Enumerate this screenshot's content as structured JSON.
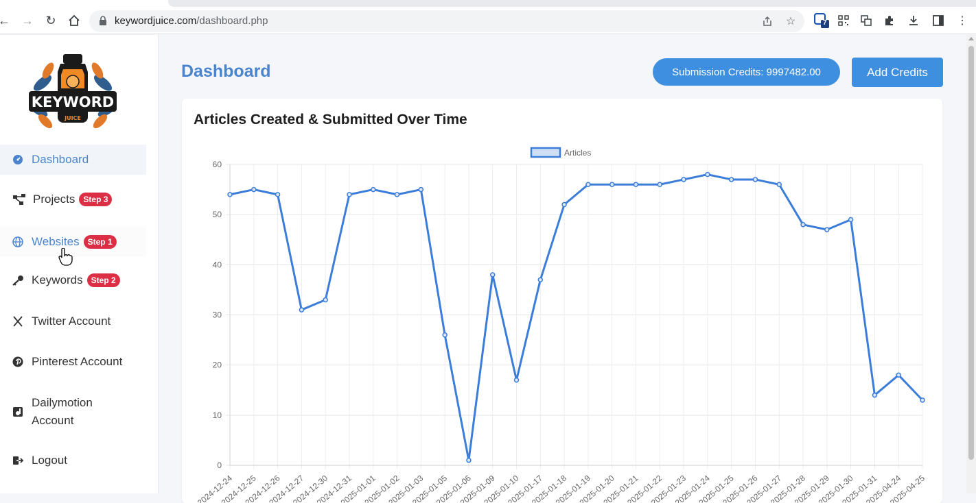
{
  "browser": {
    "url_host": "keywordjuice.com",
    "url_path": "/dashboard.php",
    "extension_badge": "7"
  },
  "sidebar": {
    "logo_text": "KEYWORD",
    "logo_subtext": "JUICE",
    "items": [
      {
        "label": "Dashboard",
        "icon": "dashboard-icon",
        "active": true
      },
      {
        "label": "Projects",
        "icon": "projects-icon",
        "badge": "Step 3"
      },
      {
        "label": "Websites",
        "icon": "globe-icon",
        "badge": "Step 1"
      },
      {
        "label": "Keywords",
        "icon": "key-icon",
        "badge": "Step 2"
      },
      {
        "label": "Twitter Account",
        "icon": "x-icon"
      },
      {
        "label": "Pinterest Account",
        "icon": "pinterest-icon"
      },
      {
        "label": "Dailymotion Account",
        "icon": "dailymotion-icon"
      },
      {
        "label": "Logout",
        "icon": "logout-icon"
      }
    ]
  },
  "header": {
    "title": "Dashboard",
    "credits_label": "Submission Credits: 9997482.00",
    "add_credits_label": "Add Credits"
  },
  "card": {
    "title": "Articles Created & Submitted Over Time"
  },
  "colors": {
    "accent": "#4a84cf",
    "button": "#3f8fe0",
    "badge": "#dc2f45",
    "line": "#3b7dd8"
  },
  "chart_data": {
    "type": "line",
    "title": "",
    "legend": [
      "Articles"
    ],
    "legend_position": "top",
    "ylim": [
      0,
      60
    ],
    "yticks": [
      0,
      10,
      20,
      30,
      40,
      50,
      60
    ],
    "grid": true,
    "categories": [
      "2024-12-24",
      "2024-12-25",
      "2024-12-26",
      "2024-12-27",
      "2024-12-30",
      "2024-12-31",
      "2025-01-01",
      "2025-01-02",
      "2025-01-03",
      "2025-01-05",
      "2025-01-06",
      "2025-01-09",
      "2025-01-10",
      "2025-01-17",
      "2025-01-18",
      "2025-01-19",
      "2025-01-20",
      "2025-01-21",
      "2025-01-22",
      "2025-01-23",
      "2025-01-24",
      "2025-01-25",
      "2025-01-26",
      "2025-01-27",
      "2025-01-28",
      "2025-01-29",
      "2025-01-30",
      "2025-01-31",
      "2025-04-24",
      "2025-04-25"
    ],
    "series": [
      {
        "name": "Articles",
        "values": [
          54,
          55,
          54,
          31,
          33,
          54,
          55,
          54,
          55,
          26,
          1,
          38,
          17,
          37,
          52,
          56,
          56,
          56,
          56,
          57,
          58,
          57,
          57,
          56,
          48,
          47,
          49,
          14,
          18,
          13
        ]
      }
    ]
  }
}
